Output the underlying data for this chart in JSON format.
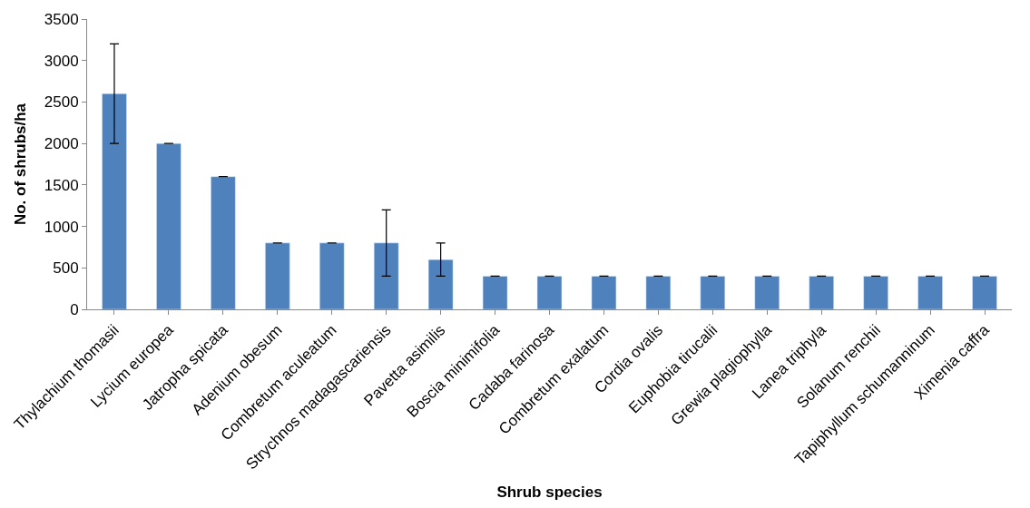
{
  "chart_data": {
    "type": "bar",
    "xlabel": "Shrub species",
    "ylabel": "No. of shrubs/ha",
    "categories": [
      "Thylachium thomasii",
      "Lycium europea",
      "Jatropha spicata",
      "Adenium obesum",
      "Combretum aculeatum",
      "Strychnos madagascariensis",
      "Pavetta asimilis",
      "Boscia minimifolia",
      "Cadaba farinosa",
      "Combretum exalatum",
      "Cordia ovalis",
      "Euphobia tirucalii",
      "Grewia plagiophylla",
      "Lanea triphyla",
      "Solanum renchii",
      "Tapiphyllum schumanninum",
      "Ximenia caffra"
    ],
    "values": [
      2600,
      2000,
      1600,
      800,
      800,
      800,
      600,
      400,
      400,
      400,
      400,
      400,
      400,
      400,
      400,
      400,
      400
    ],
    "errors": [
      600,
      0,
      0,
      0,
      0,
      400,
      200,
      0,
      0,
      0,
      0,
      0,
      0,
      0,
      0,
      0,
      0
    ],
    "color": "#4f81bd",
    "ylim": [
      0,
      3500
    ],
    "yticks": [
      0,
      500,
      1000,
      1500,
      2000,
      2500,
      3000,
      3500
    ]
  }
}
